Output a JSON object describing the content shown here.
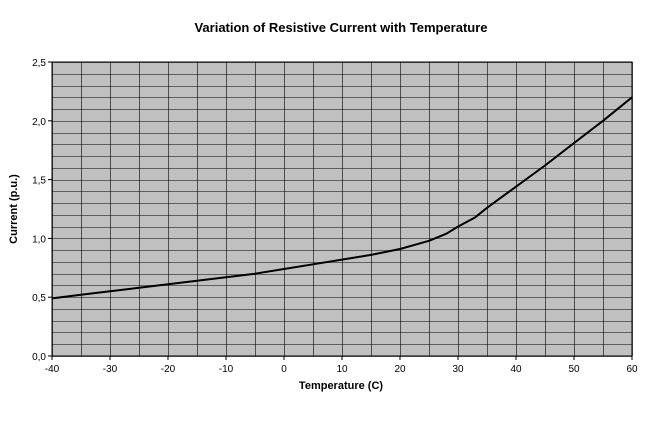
{
  "chart_data": {
    "type": "line",
    "title": "Variation of Resistive Current with Temperature",
    "xlabel": "Temperature (C)",
    "ylabel": "Current (p.u.)",
    "xlim": [
      -40,
      60
    ],
    "ylim": [
      0,
      2.5
    ],
    "x_ticks": [
      -40,
      -30,
      -20,
      -10,
      0,
      10,
      20,
      30,
      40,
      50,
      60
    ],
    "x_tick_labels": [
      "-40",
      "-30",
      "-20",
      "-10",
      "0",
      "10",
      "20",
      "30",
      "40",
      "50",
      "60"
    ],
    "y_ticks": [
      0,
      0.5,
      1.0,
      1.5,
      2.0,
      2.5
    ],
    "y_tick_labels": [
      "0,0",
      "0,5",
      "1,0",
      "1,5",
      "2,0",
      "2,5"
    ],
    "x_minor_step": 5,
    "y_minor_step": 0.1,
    "grid": true,
    "plot_background": "#c0c0c0",
    "grid_color": "#000000",
    "line_color": "#000000",
    "series": [
      {
        "name": "Resistive Current",
        "x": [
          -40,
          -35,
          -30,
          -25,
          -20,
          -15,
          -10,
          -5,
          0,
          5,
          10,
          15,
          20,
          25,
          28,
          30,
          33,
          35,
          40,
          45,
          50,
          55,
          60
        ],
        "y": [
          0.49,
          0.52,
          0.55,
          0.58,
          0.61,
          0.64,
          0.67,
          0.7,
          0.74,
          0.78,
          0.82,
          0.86,
          0.91,
          0.98,
          1.04,
          1.1,
          1.18,
          1.26,
          1.44,
          1.62,
          1.81,
          2.0,
          2.2
        ]
      }
    ]
  }
}
